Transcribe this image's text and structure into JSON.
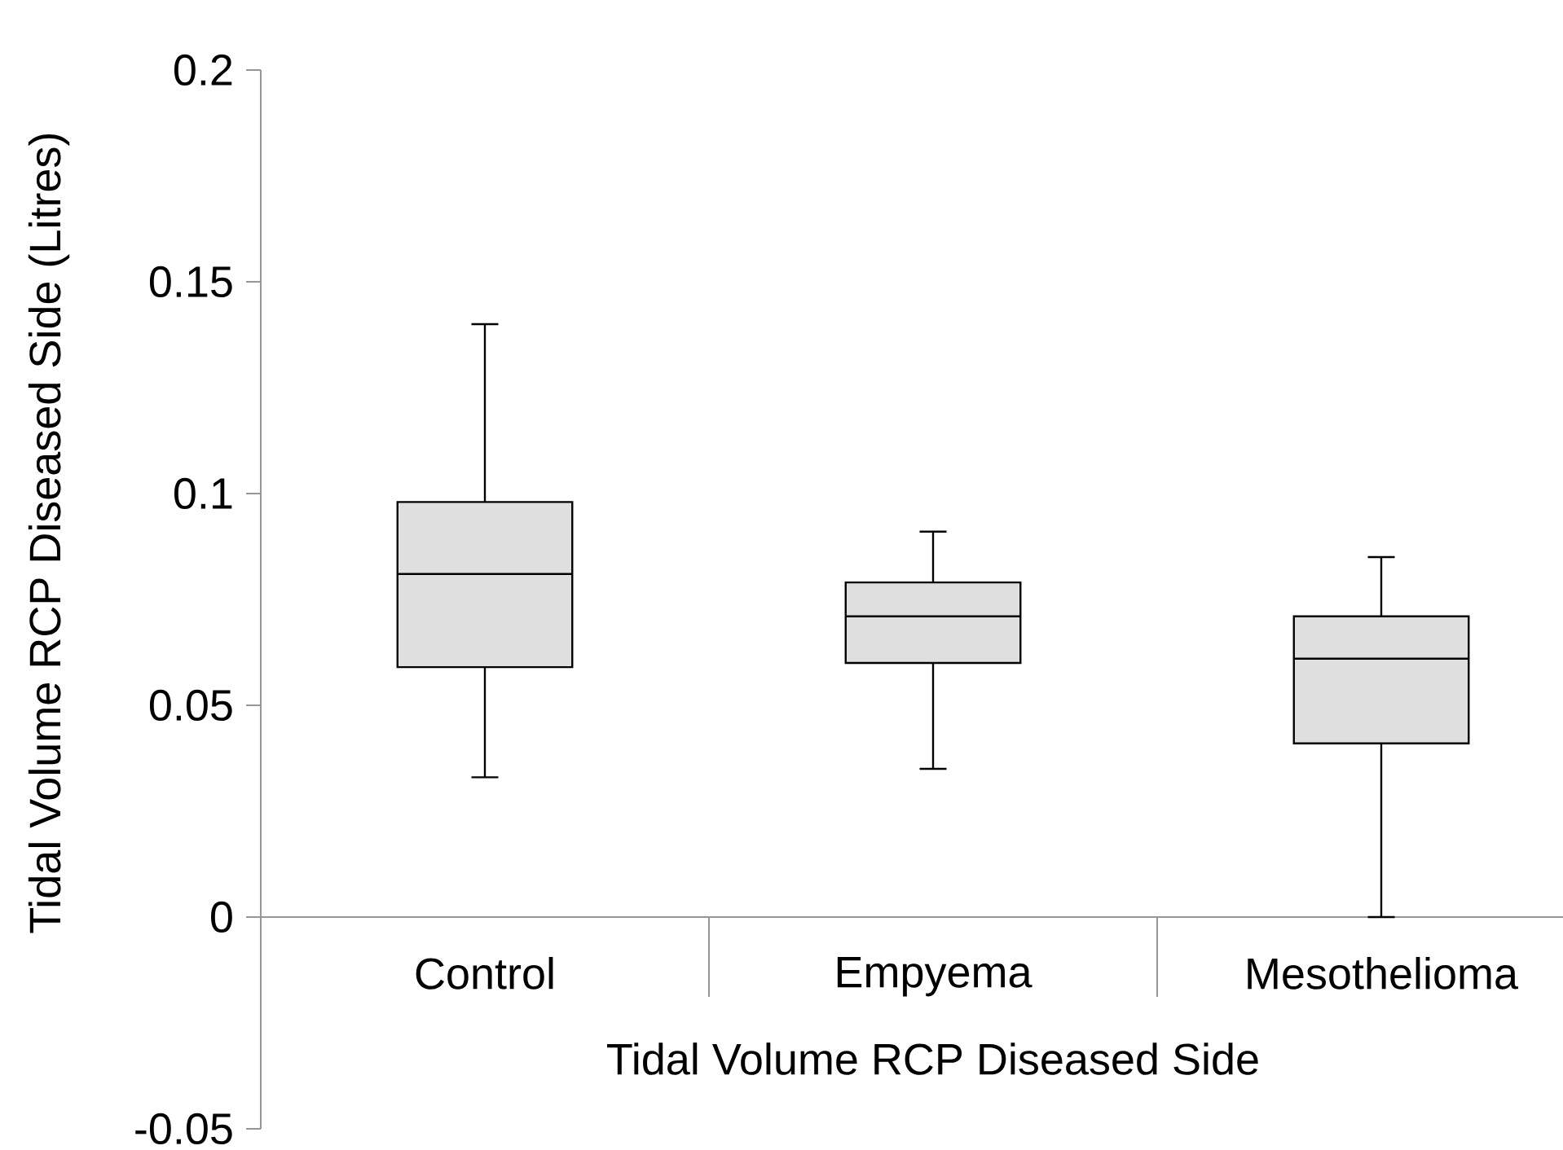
{
  "chart_data": {
    "type": "box",
    "xlabel": "Tidal Volume RCP Diseased Side",
    "ylabel": "Tidal Volume RCP Diseased Side (Litres)",
    "categories": [
      "Control",
      "Empyema",
      "Mesothelioma"
    ],
    "color": "#dfdfdf",
    "boxes": [
      {
        "low": 0.033,
        "q1": 0.059,
        "median": 0.081,
        "q3": 0.098,
        "high": 0.14
      },
      {
        "low": 0.035,
        "q1": 0.06,
        "median": 0.071,
        "q3": 0.079,
        "high": 0.091
      },
      {
        "low": 0.0,
        "q1": 0.041,
        "median": 0.061,
        "q3": 0.071,
        "high": 0.085
      }
    ],
    "ylim": [
      -0.05,
      0.2
    ],
    "yticks": [
      -0.05,
      0,
      0.05,
      0.1,
      0.15,
      0.2
    ],
    "grid": false
  }
}
